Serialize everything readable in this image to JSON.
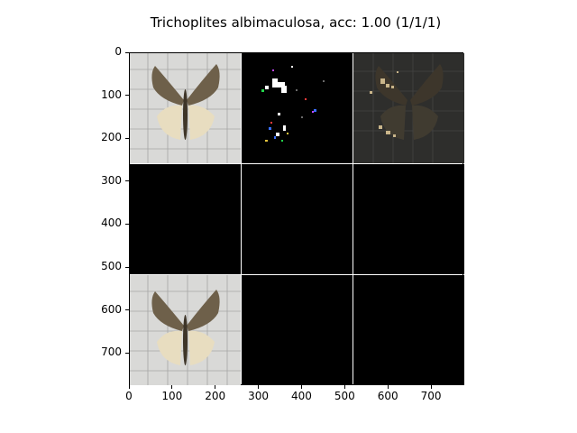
{
  "figure": {
    "title": "Trichoplites albimaculosa, acc: 1.00 (1/1/1)"
  },
  "axes": {
    "xticks": [
      "0",
      "100",
      "200",
      "300",
      "400",
      "500",
      "600",
      "700"
    ],
    "yticks": [
      "0",
      "100",
      "200",
      "300",
      "400",
      "500",
      "600",
      "700"
    ],
    "xlim": [
      0,
      775
    ],
    "ylim": [
      775,
      0
    ]
  },
  "panels": [
    {
      "row": 0,
      "col": 0,
      "content": "moth photograph"
    },
    {
      "row": 0,
      "col": 1,
      "content": "saliency map, sparse colored pixels on black"
    },
    {
      "row": 0,
      "col": 2,
      "content": "darkened moth with highlighted regions"
    },
    {
      "row": 1,
      "col": 0,
      "content": "black"
    },
    {
      "row": 1,
      "col": 1,
      "content": "black"
    },
    {
      "row": 1,
      "col": 2,
      "content": "black"
    },
    {
      "row": 2,
      "col": 0,
      "content": "moth photograph"
    },
    {
      "row": 2,
      "col": 1,
      "content": "black"
    },
    {
      "row": 2,
      "col": 2,
      "content": "black"
    }
  ],
  "colors": {
    "background": "#ffffff",
    "axes_frame": "#000000",
    "separator": "#ffffff",
    "photo_bg": "#d8d8d6",
    "moth_forewing": "#6d5f4a",
    "moth_hindwing": "#e6dcc0"
  }
}
